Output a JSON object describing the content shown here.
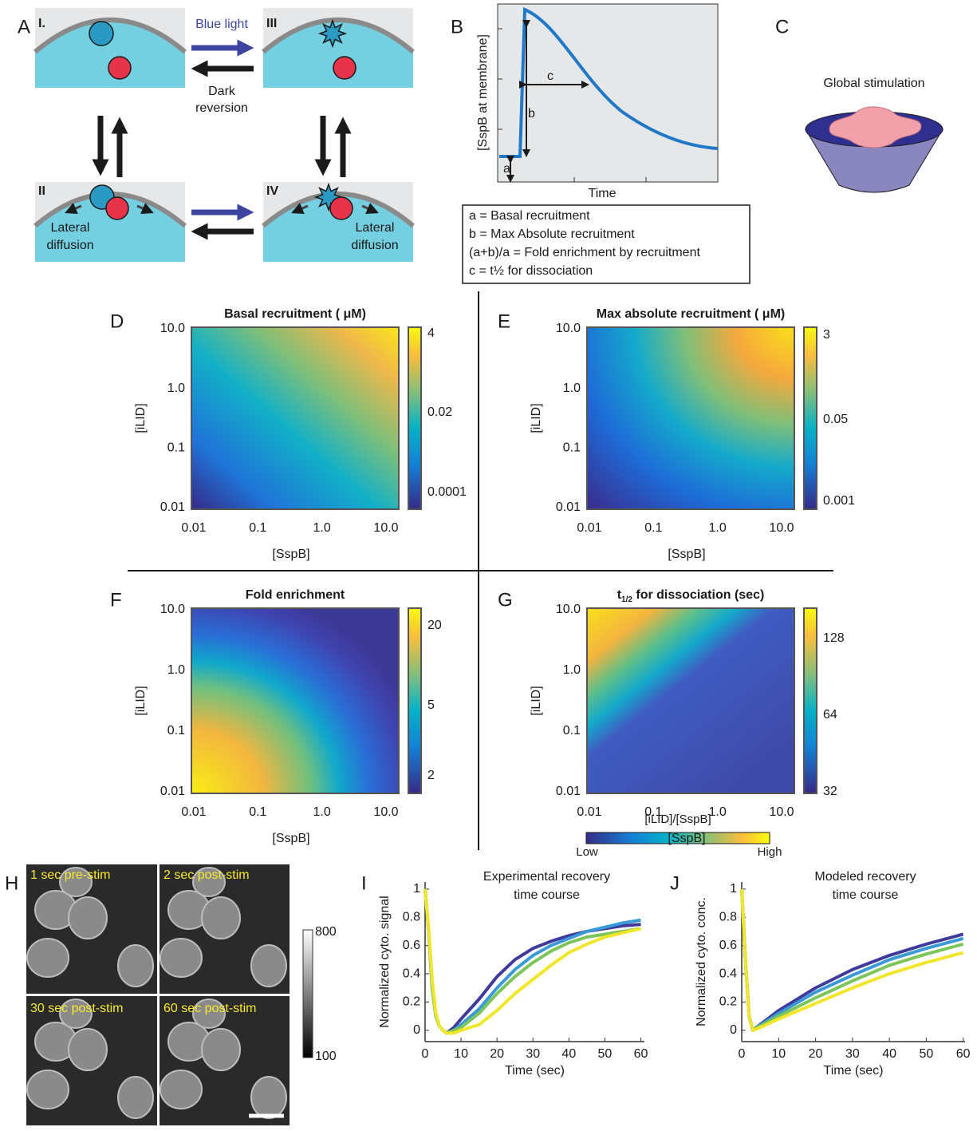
{
  "panel_labels": [
    "A",
    "B",
    "C",
    "D",
    "E",
    "F",
    "G",
    "H",
    "I",
    "J"
  ],
  "panel_a": {
    "states": [
      "I.",
      "III",
      "II",
      "IV"
    ],
    "blue_light": "Blue light",
    "dark_reversion": [
      "Dark",
      "reversion"
    ],
    "lateral_diffusion": [
      "Lateral",
      "diffusion"
    ]
  },
  "panel_b": {
    "y_label": "[SspB at membrane]",
    "x_label": "Time",
    "marks": [
      "a",
      "b",
      "c"
    ],
    "legend": [
      "a = Basal recruitment",
      "b = Max Absolute recruitment",
      "(a+b)/a = Fold enrichment by recruitment",
      "c = t½ for dissociation"
    ]
  },
  "panel_c": {
    "title": "Global stimulation"
  },
  "heatmaps": [
    {
      "title": "Basal recruitment ( μM)",
      "x_label": "[SspB]",
      "y_label": "[iLID]",
      "xticks": [
        "0.01",
        "0.1",
        "1.0",
        "10.0"
      ],
      "yticks": [
        "10.0",
        "1.0",
        "0.1",
        "0.01"
      ],
      "colorbar_ticks": [
        "4",
        "0.02",
        "0.0001"
      ]
    },
    {
      "title": "Max absolute recruitment ( μM)",
      "x_label": "[SspB]",
      "y_label": "[iLID]",
      "xticks": [
        "0.01",
        "0.1",
        "1.0",
        "10.0"
      ],
      "yticks": [
        "10.0",
        "1.0",
        "0.1",
        "0.01"
      ],
      "colorbar_ticks": [
        "3",
        "0.05",
        "0.001"
      ]
    },
    {
      "title": "Fold enrichment",
      "x_label": "[SspB]",
      "y_label": "[iLID]",
      "xticks": [
        "0.01",
        "0.1",
        "1.0",
        "10.0"
      ],
      "yticks": [
        "10.0",
        "1.0",
        "0.1",
        "0.01"
      ],
      "colorbar_ticks": [
        "20",
        "5",
        "2"
      ]
    },
    {
      "title": [
        "t",
        "1/2",
        " for dissociation (sec)"
      ],
      "x_label": "[SspB]",
      "y_label": "[iLID]",
      "xticks": [
        "0.01",
        "0.1",
        "1.0",
        "10.0"
      ],
      "yticks": [
        "10.0",
        "1.0",
        "0.1",
        "0.01"
      ],
      "colorbar_ticks": [
        "128",
        "64",
        "32"
      ]
    }
  ],
  "panel_h": {
    "frames": [
      "1 sec pre-stim",
      "2 sec post-stim",
      "30 sec post-stim",
      "60 sec post-stim"
    ],
    "colorbar_ticks": [
      "800",
      "100"
    ]
  },
  "colorbar": {
    "title": "[iLID]/[SspB]",
    "low": "Low",
    "high": "High"
  },
  "chart_data": [
    {
      "type": "line",
      "title": [
        "Experimental recovery",
        "time course"
      ],
      "x_label": "Time (sec)",
      "y_label": "Normalized cyto. signal",
      "x": [
        0,
        1,
        2,
        3,
        4,
        5,
        6,
        8,
        10,
        15,
        20,
        25,
        30,
        35,
        40,
        45,
        50,
        55,
        60
      ],
      "series": [
        {
          "color": "#3f3a9c",
          "values": [
            1,
            0.7,
            0.3,
            0.1,
            0.03,
            0,
            -0.02,
            0.02,
            0.08,
            0.22,
            0.38,
            0.5,
            0.58,
            0.63,
            0.67,
            0.7,
            0.72,
            0.74,
            0.75
          ]
        },
        {
          "color": "#3a9ad8",
          "values": [
            1,
            0.7,
            0.3,
            0.1,
            0.03,
            0,
            -0.02,
            0,
            0.04,
            0.15,
            0.3,
            0.43,
            0.53,
            0.6,
            0.65,
            0.7,
            0.73,
            0.76,
            0.78
          ]
        },
        {
          "color": "#7cc55a",
          "values": [
            1,
            0.7,
            0.3,
            0.1,
            0.03,
            0,
            -0.02,
            0,
            0.02,
            0.12,
            0.26,
            0.38,
            0.48,
            0.56,
            0.62,
            0.66,
            0.68,
            0.7,
            0.72
          ]
        },
        {
          "color": "#f2e62a",
          "values": [
            1,
            0.72,
            0.35,
            0.12,
            0.03,
            0,
            -0.02,
            -0.02,
            0,
            0.04,
            0.14,
            0.26,
            0.36,
            0.46,
            0.55,
            0.61,
            0.66,
            0.69,
            0.72
          ]
        }
      ],
      "xlim": [
        0,
        61
      ],
      "ylim": [
        -0.08,
        1.05
      ],
      "xticks": [
        0,
        10,
        20,
        30,
        40,
        50,
        60
      ],
      "yticks": [
        0,
        0.2,
        0.4,
        0.6,
        0.8,
        1
      ]
    },
    {
      "type": "line",
      "title": [
        "Modeled recovery",
        "time course"
      ],
      "x_label": "Time (sec)",
      "y_label": "Normalized cyto. conc.",
      "x": [
        0,
        1,
        2,
        3,
        4,
        5,
        10,
        20,
        30,
        40,
        50,
        60
      ],
      "series": [
        {
          "color": "#3f3a9c",
          "values": [
            1,
            0.5,
            0.1,
            0,
            0.02,
            0.04,
            0.14,
            0.3,
            0.43,
            0.53,
            0.61,
            0.68
          ]
        },
        {
          "color": "#3a9ad8",
          "values": [
            1,
            0.5,
            0.1,
            0,
            0.02,
            0.035,
            0.12,
            0.27,
            0.39,
            0.5,
            0.58,
            0.65
          ]
        },
        {
          "color": "#7cc55a",
          "values": [
            1,
            0.5,
            0.1,
            0,
            0.015,
            0.03,
            0.1,
            0.23,
            0.35,
            0.46,
            0.54,
            0.61
          ]
        },
        {
          "color": "#f2e62a",
          "values": [
            1,
            0.5,
            0.1,
            0,
            0.01,
            0.02,
            0.08,
            0.19,
            0.3,
            0.4,
            0.48,
            0.55
          ]
        }
      ],
      "xlim": [
        0,
        60.5
      ],
      "ylim": [
        -0.08,
        1.05
      ],
      "xticks": [
        0,
        10,
        20,
        30,
        40,
        50,
        60
      ],
      "yticks": [
        0,
        0.2,
        0.4,
        0.6,
        0.8,
        1
      ]
    }
  ]
}
